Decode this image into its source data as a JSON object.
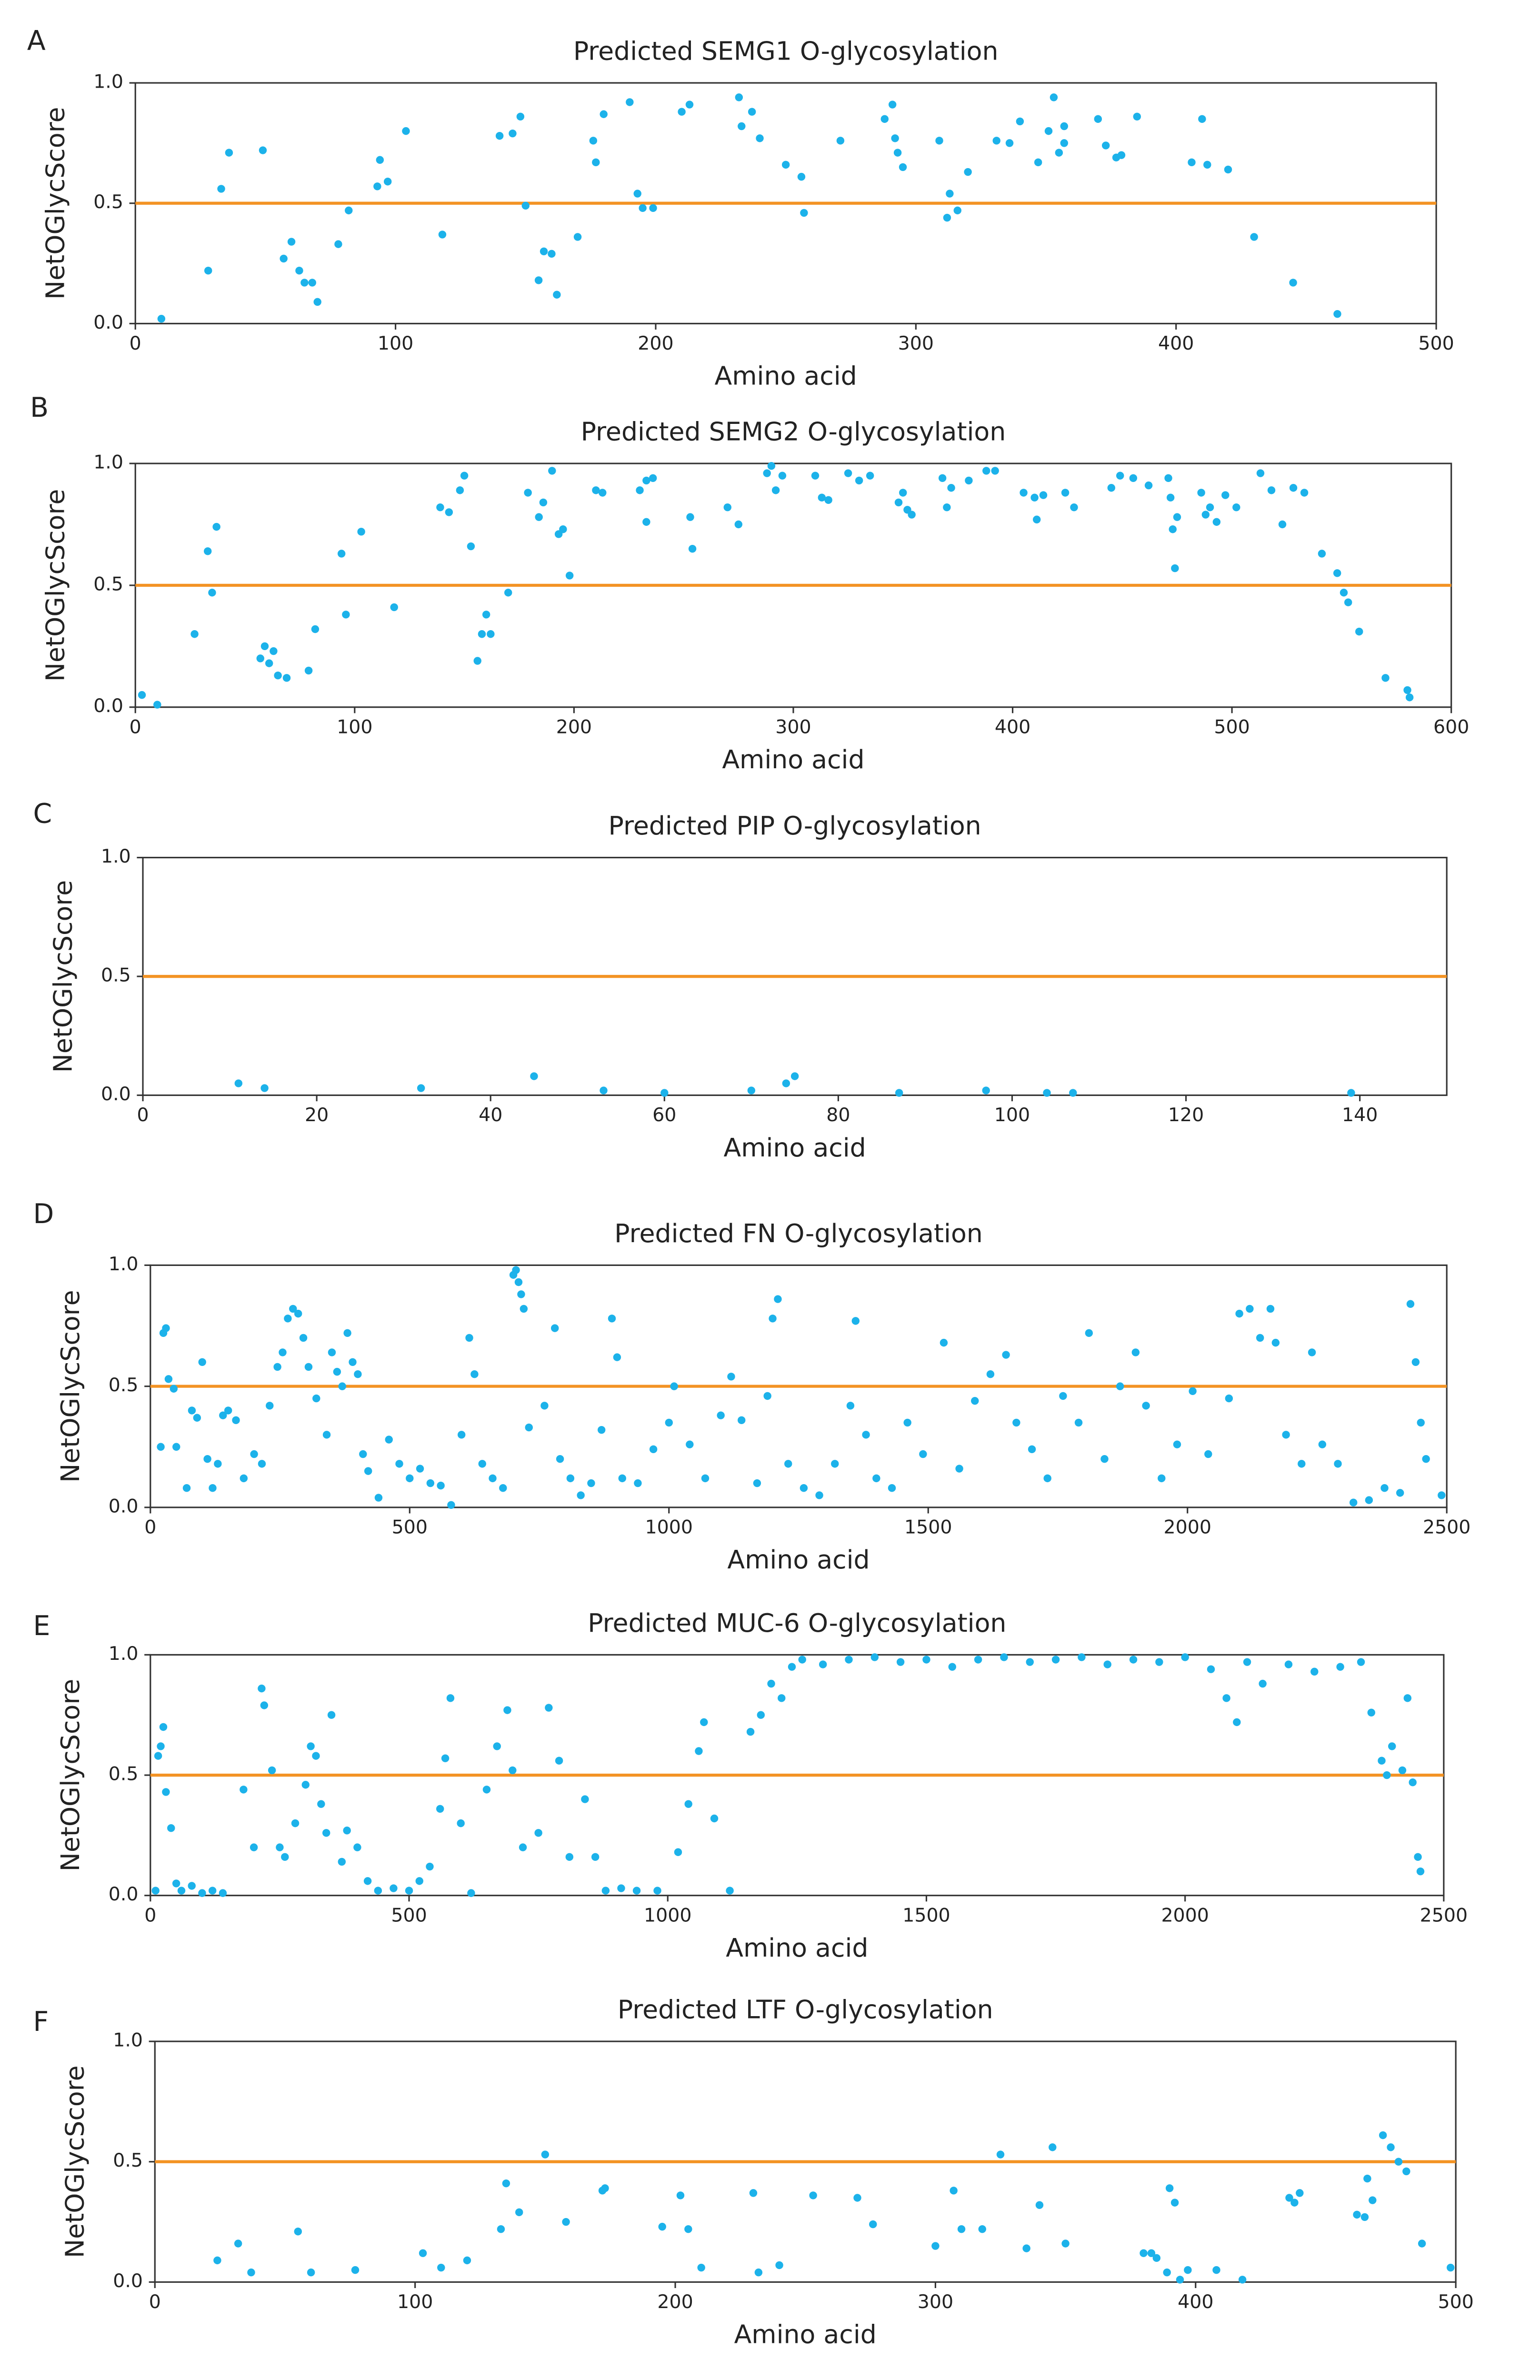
{
  "chart_data": [
    {
      "type": "scatter",
      "panel_label": "A",
      "title": "Predicted SEMG1 O-glycosylation",
      "x_label": "Amino acid",
      "y_label": "NetOGlycScore",
      "color": "#1cb2ea",
      "reference_line": {
        "value": 0.5,
        "color": "#f39324"
      },
      "xlim": [
        0,
        500
      ],
      "xticks": [
        0,
        100,
        200,
        300,
        400,
        500
      ],
      "ylim": [
        0,
        1
      ],
      "yticks": [
        {
          "value": 0,
          "label": "0.0"
        },
        {
          "value": 0.5,
          "label": "0.5"
        },
        {
          "value": 1,
          "label": "1.0"
        }
      ],
      "x": [
        10,
        28,
        33,
        36,
        49,
        57,
        60,
        63,
        65,
        68,
        70,
        78,
        82,
        93,
        94,
        97,
        104,
        118,
        140,
        145,
        148,
        150,
        155,
        157,
        160,
        162,
        170,
        176,
        177,
        180,
        190,
        193,
        195,
        199,
        210,
        213,
        232,
        233,
        237,
        240,
        250,
        256,
        257,
        271,
        288,
        291,
        292,
        293,
        295,
        309,
        312,
        313,
        316,
        320,
        331,
        336,
        340,
        347,
        351,
        353,
        355,
        357,
        357,
        370,
        373,
        377,
        379,
        385,
        406,
        410,
        412,
        420,
        430,
        445,
        462
      ],
      "values": [
        0.02,
        0.22,
        0.56,
        0.71,
        0.72,
        0.27,
        0.34,
        0.22,
        0.17,
        0.17,
        0.09,
        0.33,
        0.47,
        0.57,
        0.68,
        0.59,
        0.8,
        0.37,
        0.78,
        0.79,
        0.86,
        0.49,
        0.18,
        0.3,
        0.29,
        0.12,
        0.36,
        0.76,
        0.67,
        0.87,
        0.92,
        0.54,
        0.48,
        0.48,
        0.88,
        0.91,
        0.94,
        0.82,
        0.88,
        0.77,
        0.66,
        0.61,
        0.46,
        0.76,
        0.85,
        0.91,
        0.77,
        0.71,
        0.65,
        0.76,
        0.44,
        0.54,
        0.47,
        0.63,
        0.76,
        0.75,
        0.84,
        0.67,
        0.8,
        0.94,
        0.71,
        0.75,
        0.82,
        0.85,
        0.74,
        0.69,
        0.7,
        0.86,
        0.67,
        0.85,
        0.66,
        0.64,
        0.36,
        0.17,
        0.04
      ]
    },
    {
      "type": "scatter",
      "panel_label": "B",
      "title": "Predicted SEMG2 O-glycosylation",
      "x_label": "Amino acid",
      "y_label": "NetOGlycScore",
      "color": "#1cb2ea",
      "reference_line": {
        "value": 0.5,
        "color": "#f39324"
      },
      "xlim": [
        0,
        600
      ],
      "xticks": [
        0,
        100,
        200,
        300,
        400,
        500,
        600
      ],
      "ylim": [
        0,
        1
      ],
      "yticks": [
        {
          "value": 0,
          "label": "0.0"
        },
        {
          "value": 0.5,
          "label": "0.5"
        },
        {
          "value": 1,
          "label": "1.0"
        }
      ],
      "x": [
        3,
        10,
        27,
        33,
        35,
        37,
        57,
        59,
        61,
        63,
        65,
        69,
        79,
        82,
        94,
        96,
        103,
        118,
        139,
        143,
        148,
        150,
        153,
        156,
        158,
        160,
        162,
        170,
        179,
        184,
        186,
        190,
        193,
        195,
        198,
        210,
        213,
        230,
        233,
        236,
        233,
        253,
        254,
        270,
        275,
        288,
        290,
        292,
        295,
        310,
        313,
        316,
        325,
        330,
        335,
        348,
        350,
        352,
        354,
        368,
        370,
        372,
        380,
        388,
        392,
        405,
        410,
        411,
        414,
        424,
        428,
        445,
        449,
        455,
        462,
        471,
        473,
        475,
        472,
        474,
        486,
        488,
        490,
        493,
        497,
        502,
        513,
        518,
        528,
        533,
        523,
        541,
        548,
        551,
        553,
        558,
        570,
        580,
        581
      ],
      "values": [
        0.05,
        0.01,
        0.3,
        0.64,
        0.47,
        0.74,
        0.2,
        0.25,
        0.18,
        0.23,
        0.13,
        0.12,
        0.15,
        0.32,
        0.63,
        0.38,
        0.72,
        0.41,
        0.82,
        0.8,
        0.89,
        0.95,
        0.66,
        0.19,
        0.3,
        0.38,
        0.3,
        0.47,
        0.88,
        0.78,
        0.84,
        0.97,
        0.71,
        0.73,
        0.54,
        0.89,
        0.88,
        0.89,
        0.93,
        0.94,
        0.76,
        0.78,
        0.65,
        0.82,
        0.75,
        0.96,
        0.99,
        0.89,
        0.95,
        0.95,
        0.86,
        0.85,
        0.96,
        0.93,
        0.95,
        0.84,
        0.88,
        0.81,
        0.79,
        0.94,
        0.82,
        0.9,
        0.93,
        0.97,
        0.97,
        0.88,
        0.86,
        0.77,
        0.87,
        0.88,
        0.82,
        0.9,
        0.95,
        0.94,
        0.91,
        0.94,
        0.73,
        0.78,
        0.86,
        0.57,
        0.88,
        0.79,
        0.82,
        0.76,
        0.87,
        0.82,
        0.96,
        0.89,
        0.9,
        0.88,
        0.75,
        0.63,
        0.55,
        0.47,
        0.43,
        0.31,
        0.12,
        0.07,
        0.04
      ]
    },
    {
      "type": "scatter",
      "panel_label": "C",
      "title": "Predicted PIP O-glycosylation",
      "x_label": "Amino acid",
      "y_label": "NetOGlycScore",
      "color": "#1cb2ea",
      "reference_line": {
        "value": 0.5,
        "color": "#f39324"
      },
      "xlim": [
        0,
        150
      ],
      "xticks": [
        0,
        20,
        40,
        60,
        80,
        100,
        120,
        140
      ],
      "ylim": [
        0,
        1
      ],
      "yticks": [
        {
          "value": 0,
          "label": "0.0"
        },
        {
          "value": 0.5,
          "label": "0.5"
        },
        {
          "value": 1,
          "label": "1.0"
        }
      ],
      "x": [
        11,
        14,
        32,
        45,
        53,
        60,
        70,
        74,
        75,
        87,
        97,
        104,
        107,
        139
      ],
      "values": [
        0.05,
        0.03,
        0.03,
        0.08,
        0.02,
        0.01,
        0.02,
        0.05,
        0.08,
        0.01,
        0.02,
        0.01,
        0.01,
        0.01
      ]
    },
    {
      "type": "scatter",
      "panel_label": "D",
      "title": "Predicted FN O-glycosylation",
      "x_label": "Amino acid",
      "y_label": "NetOGlycScore",
      "color": "#1cb2ea",
      "reference_line": {
        "value": 0.5,
        "color": "#f39324"
      },
      "xlim": [
        0,
        2500
      ],
      "xticks": [
        0,
        500,
        1000,
        1500,
        2000,
        2500
      ],
      "ylim": [
        0,
        1
      ],
      "yticks": [
        {
          "value": 0,
          "label": "0.0"
        },
        {
          "value": 0.5,
          "label": "0.5"
        },
        {
          "value": 1,
          "label": "1.0"
        }
      ],
      "x": [
        20,
        25,
        30,
        35,
        45,
        50,
        70,
        80,
        90,
        100,
        110,
        120,
        130,
        140,
        150,
        165,
        180,
        200,
        215,
        230,
        245,
        255,
        265,
        275,
        285,
        295,
        305,
        320,
        340,
        350,
        360,
        370,
        380,
        390,
        400,
        410,
        420,
        440,
        460,
        480,
        500,
        520,
        540,
        560,
        580,
        600,
        615,
        625,
        640,
        660,
        680,
        700,
        705,
        710,
        715,
        720,
        730,
        760,
        780,
        790,
        810,
        830,
        850,
        870,
        890,
        900,
        910,
        940,
        970,
        1000,
        1010,
        1040,
        1070,
        1100,
        1120,
        1140,
        1170,
        1190,
        1200,
        1210,
        1230,
        1260,
        1290,
        1320,
        1350,
        1360,
        1380,
        1400,
        1430,
        1460,
        1490,
        1530,
        1560,
        1590,
        1620,
        1650,
        1670,
        1700,
        1730,
        1760,
        1790,
        1810,
        1840,
        1870,
        1900,
        1920,
        1950,
        1980,
        2010,
        2040,
        2080,
        2100,
        2120,
        2140,
        2160,
        2170,
        2190,
        2220,
        2240,
        2260,
        2290,
        2320,
        2350,
        2380,
        2410,
        2430,
        2440,
        2450,
        2460,
        2490
      ],
      "values": [
        0.25,
        0.72,
        0.74,
        0.53,
        0.49,
        0.25,
        0.08,
        0.4,
        0.37,
        0.6,
        0.2,
        0.08,
        0.18,
        0.38,
        0.4,
        0.36,
        0.12,
        0.22,
        0.18,
        0.42,
        0.58,
        0.64,
        0.78,
        0.82,
        0.8,
        0.7,
        0.58,
        0.45,
        0.3,
        0.64,
        0.56,
        0.5,
        0.72,
        0.6,
        0.55,
        0.22,
        0.15,
        0.04,
        0.28,
        0.18,
        0.12,
        0.16,
        0.1,
        0.09,
        0.01,
        0.3,
        0.7,
        0.55,
        0.18,
        0.12,
        0.08,
        0.96,
        0.98,
        0.93,
        0.88,
        0.82,
        0.33,
        0.42,
        0.74,
        0.2,
        0.12,
        0.05,
        0.1,
        0.32,
        0.78,
        0.62,
        0.12,
        0.1,
        0.24,
        0.35,
        0.5,
        0.26,
        0.12,
        0.38,
        0.54,
        0.36,
        0.1,
        0.46,
        0.78,
        0.86,
        0.18,
        0.08,
        0.05,
        0.18,
        0.42,
        0.77,
        0.3,
        0.12,
        0.08,
        0.35,
        0.22,
        0.68,
        0.16,
        0.44,
        0.55,
        0.63,
        0.35,
        0.24,
        0.12,
        0.46,
        0.35,
        0.72,
        0.2,
        0.5,
        0.64,
        0.42,
        0.12,
        0.26,
        0.48,
        0.22,
        0.45,
        0.8,
        0.82,
        0.7,
        0.82,
        0.68,
        0.3,
        0.18,
        0.64,
        0.26,
        0.18,
        0.02,
        0.03,
        0.08,
        0.06,
        0.84,
        0.6,
        0.35,
        0.2,
        0.05
      ]
    },
    {
      "type": "scatter",
      "panel_label": "E",
      "title": "Predicted MUC-6 O-glycosylation",
      "x_label": "Amino acid",
      "y_label": "NetOGlycScore",
      "color": "#1cb2ea",
      "reference_line": {
        "value": 0.5,
        "color": "#f39324"
      },
      "xlim": [
        0,
        2500
      ],
      "xticks": [
        0,
        500,
        1000,
        1500,
        2000,
        2500
      ],
      "ylim": [
        0,
        1
      ],
      "yticks": [
        {
          "value": 0,
          "label": "0.0"
        },
        {
          "value": 0.5,
          "label": "0.5"
        },
        {
          "value": 1,
          "label": "1.0"
        }
      ],
      "x": [
        10,
        15,
        20,
        25,
        30,
        40,
        50,
        60,
        80,
        100,
        120,
        140,
        180,
        200,
        215,
        220,
        235,
        250,
        260,
        280,
        300,
        310,
        320,
        330,
        340,
        350,
        370,
        380,
        400,
        420,
        440,
        470,
        500,
        520,
        540,
        560,
        570,
        580,
        600,
        620,
        650,
        670,
        690,
        700,
        720,
        750,
        770,
        790,
        810,
        840,
        860,
        880,
        910,
        940,
        980,
        1020,
        1040,
        1060,
        1070,
        1090,
        1120,
        1160,
        1180,
        1200,
        1220,
        1240,
        1260,
        1300,
        1350,
        1400,
        1450,
        1500,
        1550,
        1600,
        1650,
        1700,
        1750,
        1800,
        1850,
        1900,
        1950,
        2000,
        2050,
        2080,
        2100,
        2120,
        2150,
        2200,
        2250,
        2300,
        2340,
        2360,
        2380,
        2390,
        2400,
        2420,
        2430,
        2440,
        2450,
        2455
      ],
      "values": [
        0.02,
        0.58,
        0.62,
        0.7,
        0.43,
        0.28,
        0.05,
        0.02,
        0.04,
        0.01,
        0.02,
        0.01,
        0.44,
        0.2,
        0.86,
        0.79,
        0.52,
        0.2,
        0.16,
        0.3,
        0.46,
        0.62,
        0.58,
        0.38,
        0.26,
        0.75,
        0.14,
        0.27,
        0.2,
        0.06,
        0.02,
        0.03,
        0.02,
        0.06,
        0.12,
        0.36,
        0.57,
        0.82,
        0.3,
        0.01,
        0.44,
        0.62,
        0.77,
        0.52,
        0.2,
        0.26,
        0.78,
        0.56,
        0.16,
        0.4,
        0.16,
        0.02,
        0.03,
        0.02,
        0.02,
        0.18,
        0.38,
        0.6,
        0.72,
        0.32,
        0.02,
        0.68,
        0.75,
        0.88,
        0.82,
        0.95,
        0.98,
        0.96,
        0.98,
        0.99,
        0.97,
        0.98,
        0.95,
        0.98,
        0.99,
        0.97,
        0.98,
        0.99,
        0.96,
        0.98,
        0.97,
        0.99,
        0.94,
        0.82,
        0.72,
        0.97,
        0.88,
        0.96,
        0.93,
        0.95,
        0.97,
        0.76,
        0.56,
        0.5,
        0.62,
        0.52,
        0.82,
        0.47,
        0.16,
        0.1
      ]
    },
    {
      "type": "scatter",
      "panel_label": "F",
      "title": "Predicted LTF O-glycosylation",
      "x_label": "Amino acid",
      "y_label": "NetOGlycScore",
      "color": "#1cb2ea",
      "reference_line": {
        "value": 0.5,
        "color": "#f39324"
      },
      "xlim": [
        0,
        500
      ],
      "xticks": [
        0,
        100,
        200,
        300,
        400,
        500
      ],
      "ylim": [
        0,
        1
      ],
      "yticks": [
        {
          "value": 0,
          "label": "0.0"
        },
        {
          "value": 0.5,
          "label": "0.5"
        },
        {
          "value": 1,
          "label": "1.0"
        }
      ],
      "x": [
        24,
        32,
        37,
        55,
        60,
        77,
        103,
        110,
        120,
        133,
        135,
        140,
        150,
        158,
        172,
        173,
        195,
        202,
        205,
        210,
        230,
        232,
        240,
        253,
        270,
        276,
        300,
        307,
        310,
        318,
        325,
        335,
        340,
        345,
        350,
        380,
        383,
        385,
        389,
        390,
        392,
        394,
        397,
        408,
        418,
        436,
        440,
        438,
        462,
        465,
        466,
        468,
        472,
        475,
        478,
        481,
        487,
        498
      ],
      "values": [
        0.09,
        0.16,
        0.04,
        0.21,
        0.04,
        0.05,
        0.12,
        0.06,
        0.09,
        0.22,
        0.41,
        0.29,
        0.53,
        0.25,
        0.38,
        0.39,
        0.23,
        0.36,
        0.22,
        0.06,
        0.37,
        0.04,
        0.07,
        0.36,
        0.35,
        0.24,
        0.15,
        0.38,
        0.22,
        0.22,
        0.53,
        0.14,
        0.32,
        0.56,
        0.16,
        0.12,
        0.12,
        0.1,
        0.04,
        0.39,
        0.33,
        0.01,
        0.05,
        0.05,
        0.01,
        0.35,
        0.37,
        0.33,
        0.28,
        0.27,
        0.43,
        0.34,
        0.61,
        0.56,
        0.5,
        0.46,
        0.16,
        0.06
      ]
    }
  ]
}
